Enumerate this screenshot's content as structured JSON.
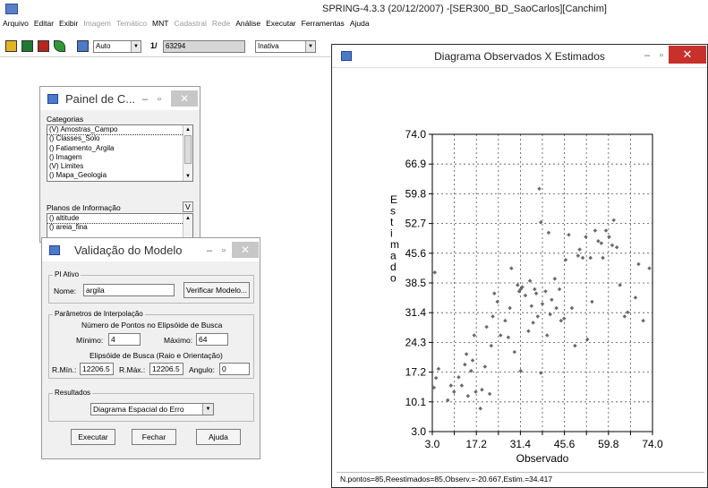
{
  "app": {
    "title": "SPRING-4.3.3 (20/12/2007) -[SER300_BD_SaoCarlos][Canchim]"
  },
  "menu": [
    {
      "label": "Arquivo",
      "enabled": true
    },
    {
      "label": "Editar",
      "enabled": true
    },
    {
      "label": "Exibir",
      "enabled": true
    },
    {
      "label": "Imagem",
      "enabled": false
    },
    {
      "label": "Temático",
      "enabled": false
    },
    {
      "label": "MNT",
      "enabled": true
    },
    {
      "label": "Cadastral",
      "enabled": false
    },
    {
      "label": "Rede",
      "enabled": false
    },
    {
      "label": "Análise",
      "enabled": true
    },
    {
      "label": "Executar",
      "enabled": true
    },
    {
      "label": "Ferramentas",
      "enabled": true
    },
    {
      "label": "Ajuda",
      "enabled": true
    }
  ],
  "toolbar": {
    "zoom_mode": "Auto",
    "scale_label": "1/",
    "scale_value": "63294",
    "status": "Inativa"
  },
  "painel": {
    "title": "Painel de C...",
    "categorias_label": "Categorias",
    "categorias": [
      "(V) Amostras_Campo",
      "() Classes_Solo",
      "() Fatiamento_Argila",
      "() Imagem",
      "(V) Limites",
      "() Mapa_Geologia"
    ],
    "planos_label": "Planos de Informação",
    "planos_flag": "V",
    "planos": [
      "() altitude",
      "() areia_fina"
    ]
  },
  "validacao": {
    "title": "Validação do Modelo",
    "pi_group": "PI Ativo",
    "nome_label": "Nome:",
    "nome_value": "argila",
    "verificar_label": "Verificar Modelo...",
    "interp_group": "Parâmetros de Interpolação",
    "num_pontos_label": "Número de Pontos no Elipsóide de Busca",
    "minimo_label": "Mínimo:",
    "minimo_value": "4",
    "maximo_label": "Máximo:",
    "maximo_value": "64",
    "elipsoide_label": "Elipsóide de Busca (Raio e Orientação)",
    "rmin_label": "R.Mín.:",
    "rmin_value": "12206.5",
    "rmax_label": "R.Máx.:",
    "rmax_value": "12206.5",
    "angulo_label": "Angulo:",
    "angulo_value": "0",
    "resultados_group": "Resultados",
    "resultados_value": "Diagrama Espacial do Erro",
    "executar_label": "Executar",
    "fechar_label": "Fechar",
    "ajuda_label": "Ajuda"
  },
  "diagrama": {
    "title": "Diagrama Observados X Estimados",
    "status": "N.pontos=85,Reestimados=85,Observ.=-20.667,Estim.=34.417"
  },
  "chart_data": {
    "type": "scatter",
    "xlabel": "Observado",
    "ylabel": "Estimado",
    "xlim": [
      3.0,
      74.0
    ],
    "ylim": [
      3.0,
      74.0
    ],
    "xticks": [
      "3.0",
      "17.2",
      "31.4",
      "45.6",
      "59.8",
      "74.0"
    ],
    "yticks": [
      "3.0",
      "10.1",
      "17.2",
      "24.3",
      "31.4",
      "38.5",
      "45.6",
      "52.7",
      "59.8",
      "66.9",
      "74.0"
    ],
    "grid": true,
    "points": [
      [
        3.5,
        13.5
      ],
      [
        4.2,
        15.8
      ],
      [
        5.0,
        18.0
      ],
      [
        3.8,
        41.0
      ],
      [
        8.0,
        10.5
      ],
      [
        9.0,
        14.0
      ],
      [
        10.0,
        12.5
      ],
      [
        11.5,
        16.0
      ],
      [
        12.5,
        14.0
      ],
      [
        13.5,
        19.0
      ],
      [
        14.0,
        21.5
      ],
      [
        14.5,
        11.5
      ],
      [
        15.5,
        17.5
      ],
      [
        16.0,
        20.0
      ],
      [
        17.0,
        12.5
      ],
      [
        16.5,
        26.0
      ],
      [
        18.5,
        8.5
      ],
      [
        19.0,
        13.0
      ],
      [
        20.0,
        18.5
      ],
      [
        21.5,
        12.0
      ],
      [
        22.0,
        23.5
      ],
      [
        20.5,
        28.0
      ],
      [
        22.5,
        30.5
      ],
      [
        24.0,
        34.0
      ],
      [
        25.0,
        26.0
      ],
      [
        23.0,
        36.0
      ],
      [
        26.5,
        29.5
      ],
      [
        27.5,
        25.5
      ],
      [
        28.0,
        32.5
      ],
      [
        28.5,
        42.0
      ],
      [
        29.5,
        22.0
      ],
      [
        30.5,
        38.0
      ],
      [
        31.0,
        36.5
      ],
      [
        31.5,
        37.0
      ],
      [
        32.0,
        37.5
      ],
      [
        31.5,
        17.5
      ],
      [
        33.0,
        35.5
      ],
      [
        34.0,
        27.0
      ],
      [
        34.5,
        39.0
      ],
      [
        35.0,
        33.0
      ],
      [
        35.5,
        29.0
      ],
      [
        36.0,
        37.0
      ],
      [
        36.5,
        36.0
      ],
      [
        37.0,
        30.5
      ],
      [
        38.5,
        33.5
      ],
      [
        38.0,
        17.0
      ],
      [
        39.5,
        36.5
      ],
      [
        40.0,
        26.0
      ],
      [
        40.5,
        50.5
      ],
      [
        41.0,
        31.0
      ],
      [
        41.5,
        34.5
      ],
      [
        42.5,
        39.5
      ],
      [
        43.0,
        32.5
      ],
      [
        44.0,
        37.0
      ],
      [
        44.5,
        29.5
      ],
      [
        45.5,
        30.0
      ],
      [
        46.0,
        44.0
      ],
      [
        47.0,
        50.0
      ],
      [
        48.0,
        32.5
      ],
      [
        49.0,
        23.5
      ],
      [
        50.0,
        45.0
      ],
      [
        50.5,
        46.5
      ],
      [
        51.5,
        44.5
      ],
      [
        52.5,
        49.5
      ],
      [
        53.0,
        25.0
      ],
      [
        54.0,
        44.5
      ],
      [
        54.5,
        34.0
      ],
      [
        55.5,
        51.0
      ],
      [
        56.5,
        48.5
      ],
      [
        57.5,
        48.0
      ],
      [
        58.0,
        44.5
      ],
      [
        59.0,
        51.0
      ],
      [
        60.0,
        49.5
      ],
      [
        61.0,
        47.5
      ],
      [
        61.5,
        53.5
      ],
      [
        62.5,
        47.0
      ],
      [
        63.5,
        38.0
      ],
      [
        65.0,
        30.5
      ],
      [
        66.0,
        31.5
      ],
      [
        68.5,
        35.0
      ],
      [
        69.5,
        43.0
      ],
      [
        71.0,
        29.5
      ],
      [
        73.0,
        42.0
      ],
      [
        38.0,
        53.0
      ],
      [
        37.5,
        61.0
      ]
    ]
  }
}
